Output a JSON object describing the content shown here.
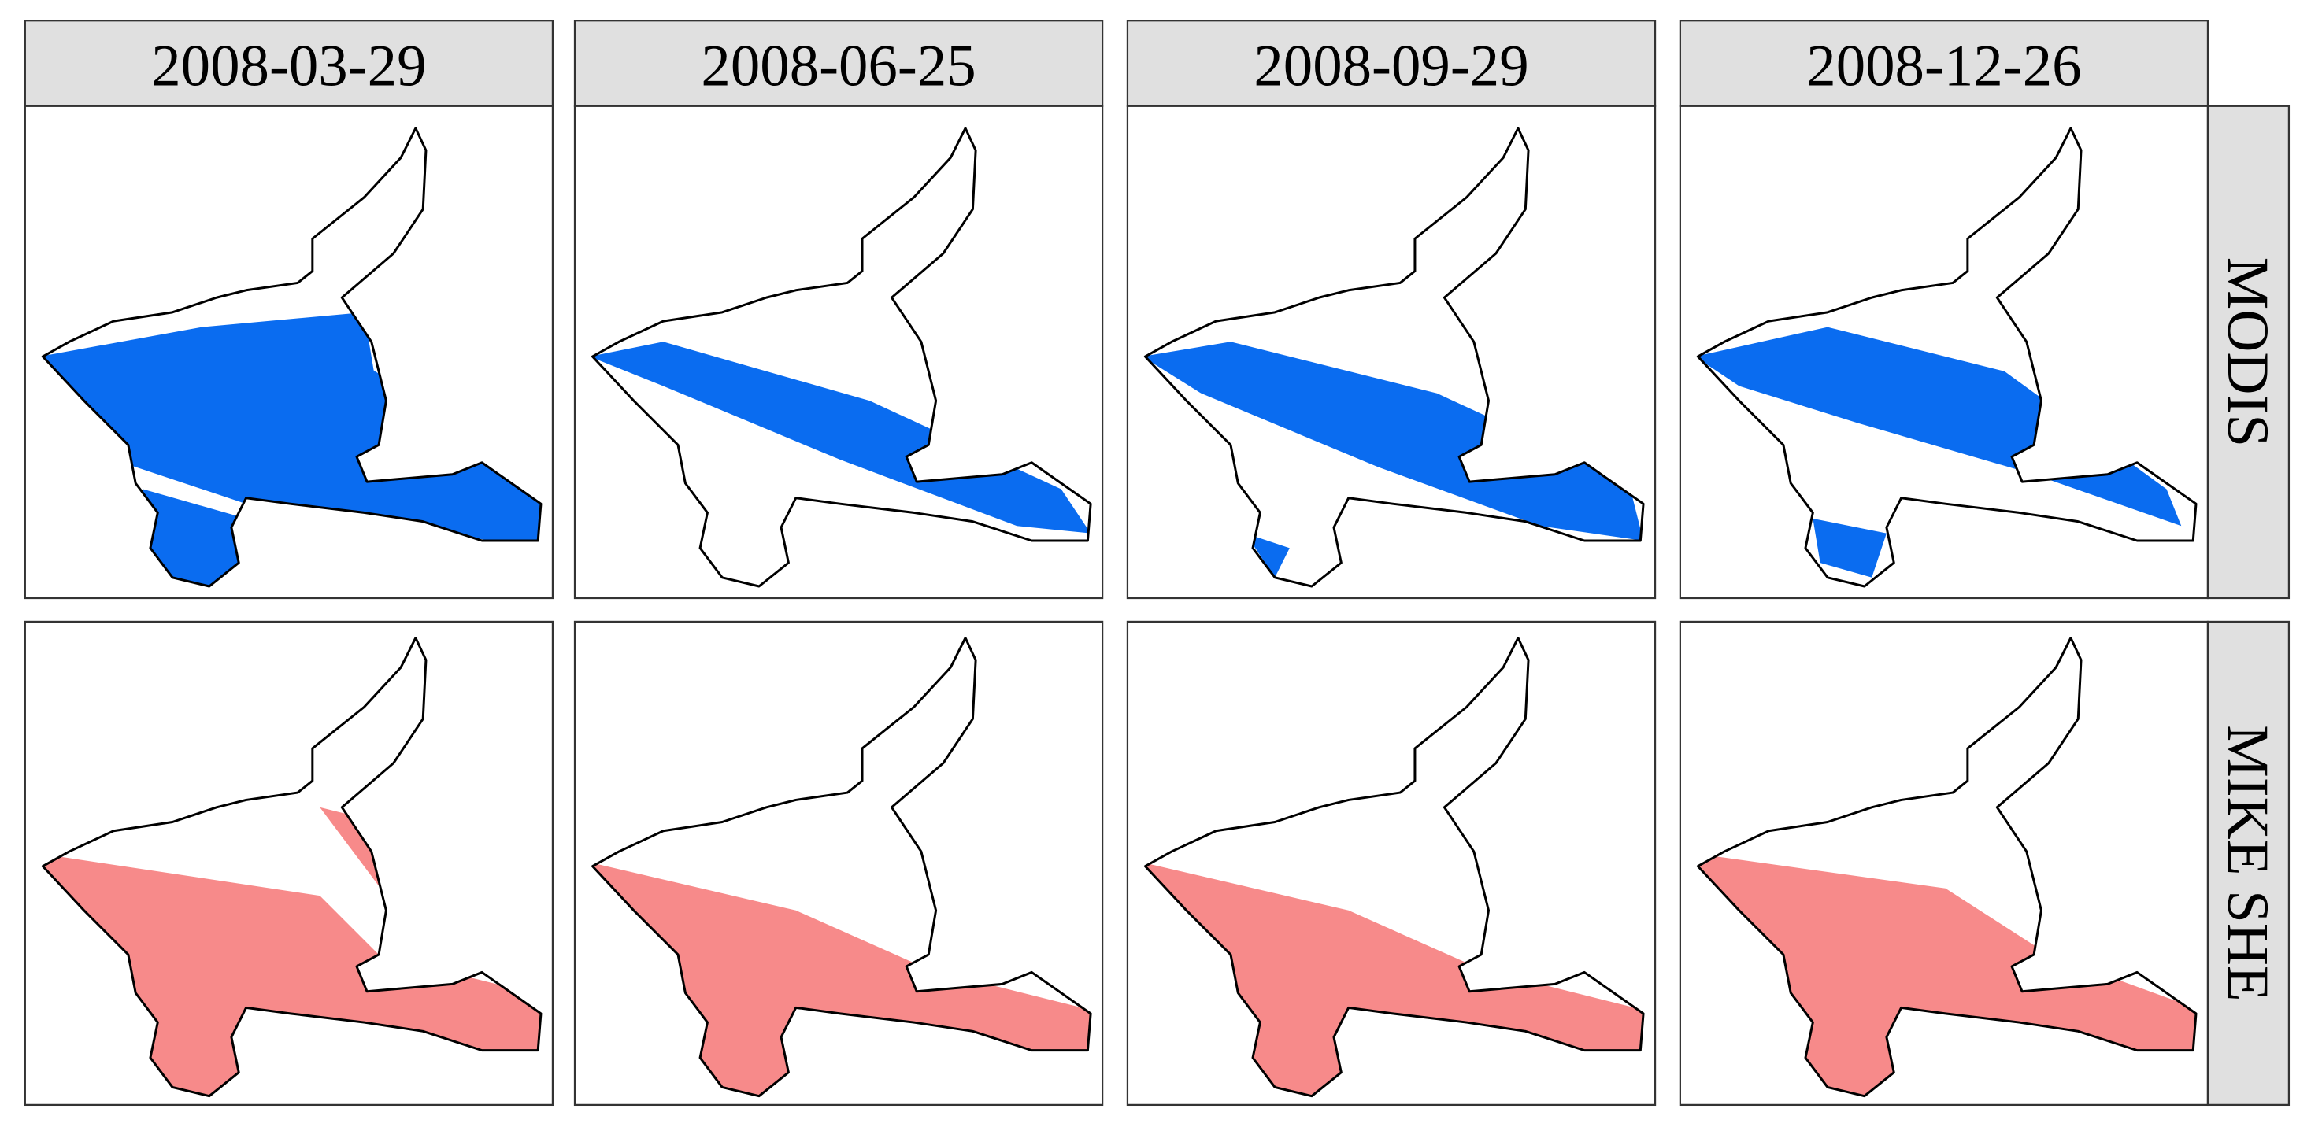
{
  "columns": [
    "2008-03-29",
    "2008-06-25",
    "2008-09-29",
    "2008-12-26"
  ],
  "rows": [
    "MODIS",
    "MIKE SHE"
  ]
}
